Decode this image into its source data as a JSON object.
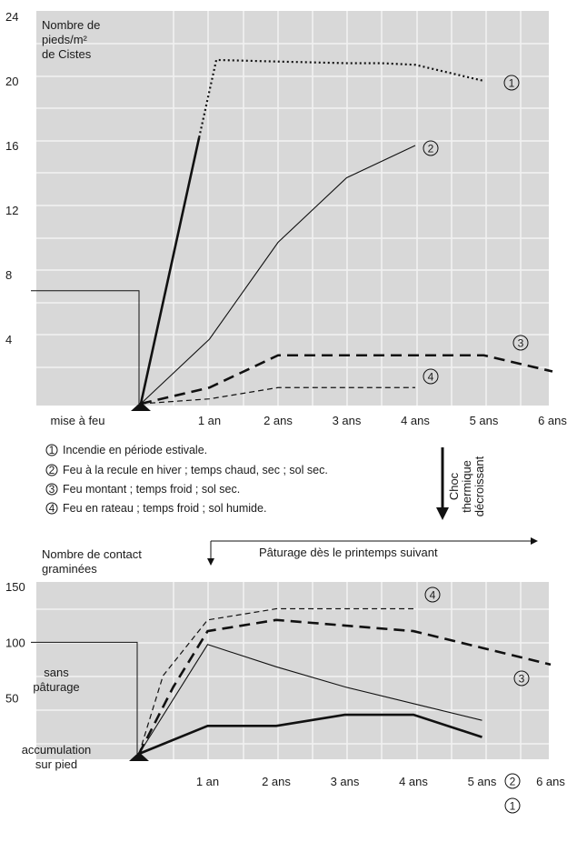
{
  "chart_data": [
    {
      "type": "line",
      "title": "",
      "ylabel": [
        "Nombre de",
        "pieds/m²",
        "de Cistes"
      ],
      "xlabel": "",
      "ylim": [
        0,
        24
      ],
      "yticks": [
        "24",
        "20",
        "16",
        "12",
        "8",
        "4"
      ],
      "xticks": [
        "mise à feu",
        "1 an",
        "2 ans",
        "3 ans",
        "4 ans",
        "5 ans",
        "6 ans"
      ],
      "baseline_before_fire": 7,
      "series": [
        {
          "name": "①",
          "style": "solid-thick+dotted",
          "x": [
            0,
            0.85,
            1.1,
            2,
            3,
            3.5,
            4,
            5
          ],
          "y": [
            0,
            16.5,
            21.3,
            21.2,
            21.1,
            21.1,
            21.0,
            20
          ]
        },
        {
          "name": "②",
          "style": "solid-thin",
          "x": [
            0,
            1,
            2,
            3,
            4
          ],
          "y": [
            0,
            4,
            10,
            14,
            16
          ]
        },
        {
          "name": "③",
          "style": "dashed-thick",
          "x": [
            0,
            1,
            2,
            3,
            4,
            5,
            6
          ],
          "y": [
            0,
            1,
            3,
            3,
            3,
            3,
            2
          ]
        },
        {
          "name": "④",
          "style": "dashed-thin",
          "x": [
            0,
            1,
            2,
            3,
            4
          ],
          "y": [
            0,
            0.3,
            1,
            1,
            1
          ]
        }
      ]
    },
    {
      "type": "line",
      "title": "",
      "ylabel": [
        "Nombre de contact",
        "graminées"
      ],
      "xlabel": "",
      "ylim": [
        0,
        150
      ],
      "yticks": [
        "150",
        "100",
        "50"
      ],
      "xticks": [
        "1 an",
        "2 ans",
        "3 ans",
        "4 ans",
        "5 ans",
        "6 ans"
      ],
      "baseline_before_fire": 100,
      "series": [
        {
          "name": "①",
          "style": "solid-thick",
          "x": [
            0,
            1,
            2,
            3,
            4,
            5
          ],
          "y": [
            0,
            25,
            25,
            35,
            35,
            15
          ]
        },
        {
          "name": "②",
          "style": "solid-thin",
          "x": [
            0,
            1,
            2,
            3,
            4,
            5
          ],
          "y": [
            0,
            98,
            78,
            60,
            45,
            30
          ]
        },
        {
          "name": "③",
          "style": "dashed-thick",
          "x": [
            0,
            0.5,
            1,
            2,
            3,
            4,
            5,
            6
          ],
          "y": [
            0,
            60,
            110,
            120,
            115,
            110,
            95,
            80
          ]
        },
        {
          "name": "④",
          "style": "dashed-thin",
          "x": [
            0,
            0.35,
            1,
            2,
            3,
            4
          ],
          "y": [
            0,
            70,
            120,
            130,
            130,
            130
          ]
        }
      ]
    }
  ],
  "legend": [
    {
      "num": "①",
      "text": "Incendie en période estivale."
    },
    {
      "num": "②",
      "text": "Feu à la recule en hiver ; temps chaud, sec ; sol sec."
    },
    {
      "num": "③",
      "text": "Feu montant ; temps froid ; sol sec."
    },
    {
      "num": "④",
      "text": "Feu en rateau ; temps froid ; sol humide."
    }
  ],
  "arrow_label": [
    "Choc",
    "thermique",
    "décroissant"
  ],
  "grazing_label": "Pâturage dès le printemps suivant",
  "annotations": {
    "sans_paturage": [
      "sans",
      "pâturage"
    ],
    "accumulation": [
      "accumulation",
      "sur pied"
    ]
  },
  "colors": {
    "panel": "#d8d8d8",
    "grid": "#f2f2f2",
    "line": "#111111"
  }
}
